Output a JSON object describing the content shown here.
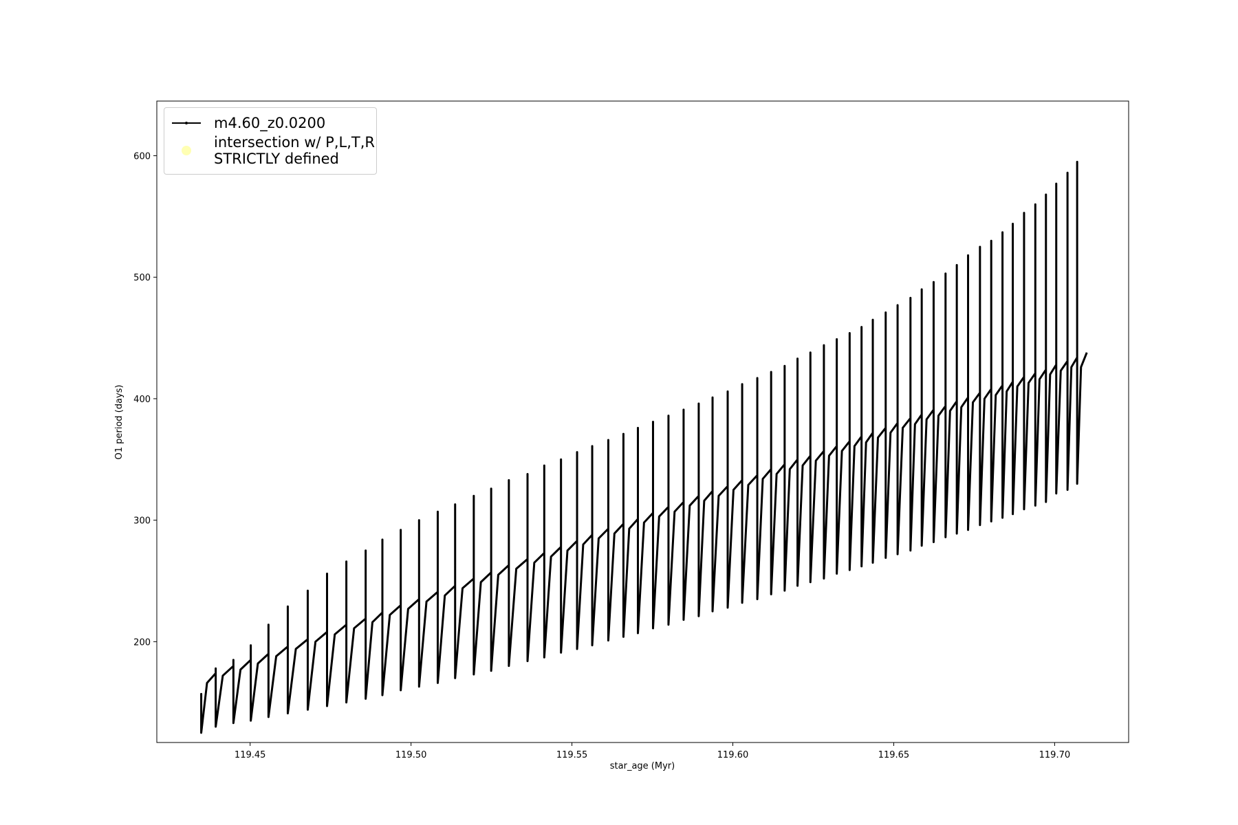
{
  "chart_data": {
    "type": "line",
    "xlabel": "star_age (Myr)",
    "ylabel": "O1 period (days)",
    "xlim": [
      119.421,
      119.723
    ],
    "ylim": [
      117,
      645
    ],
    "xticks": [
      119.45,
      {
        "value": 119.5,
        "label": "119.50"
      },
      119.55,
      {
        "value": 119.6,
        "label": "119.60"
      },
      119.65,
      {
        "value": 119.7,
        "label": "119.70"
      }
    ],
    "yticks": [
      200,
      300,
      400,
      500,
      600
    ],
    "legend": "upper left",
    "series": [
      {
        "name": "m4.60_z0.0200",
        "color": "#000000",
        "x": [
          119.4348,
          119.4348,
          119.4348,
          119.4366,
          119.4393,
          119.4393,
          119.4393,
          119.4415,
          119.4448,
          119.4448,
          119.4448,
          119.447,
          119.4502,
          119.4502,
          119.4502,
          119.4524,
          119.4557,
          119.4557,
          119.4557,
          119.4581,
          119.4617,
          119.4617,
          119.4617,
          119.4642,
          119.4679,
          119.4679,
          119.4679,
          119.4703,
          119.4739,
          119.4739,
          119.4739,
          119.4763,
          119.4799,
          119.4799,
          119.4799,
          119.4823,
          119.4859,
          119.4859,
          119.4859,
          119.488,
          119.4911,
          119.4911,
          119.4911,
          119.4934,
          119.4968,
          119.4968,
          119.4968,
          119.4991,
          119.5025,
          119.5025,
          119.5025,
          119.5048,
          119.5083,
          119.5083,
          119.5083,
          119.5105,
          119.5137,
          119.5137,
          119.5137,
          119.516,
          119.5195,
          119.5195,
          119.5195,
          119.5217,
          119.5249,
          119.5249,
          119.5249,
          119.5271,
          119.5304,
          119.5304,
          119.5304,
          119.5327,
          119.5362,
          119.5362,
          119.5362,
          119.5383,
          119.5414,
          119.5414,
          119.5414,
          119.5435,
          119.5466,
          119.5466,
          119.5466,
          119.5486,
          119.5516,
          119.5516,
          119.5516,
          119.5535,
          119.5563,
          119.5563,
          119.5563,
          119.5583,
          119.5613,
          119.5613,
          119.5613,
          119.5632,
          119.566,
          119.566,
          119.566,
          119.5678,
          119.5705,
          119.5705,
          119.5705,
          119.5724,
          119.5752,
          119.5752,
          119.5752,
          119.5771,
          119.58,
          119.58,
          119.58,
          119.5819,
          119.5847,
          119.5847,
          119.5847,
          119.5866,
          119.5894,
          119.5894,
          119.5894,
          119.5911,
          119.5937,
          119.5937,
          119.5937,
          119.5956,
          119.5984,
          119.5984,
          119.5984,
          119.6002,
          119.6029,
          119.6029,
          119.6029,
          119.6048,
          119.6076,
          119.6076,
          119.6076,
          119.6093,
          119.6119,
          119.6119,
          119.6119,
          119.6136,
          119.6161,
          119.6161,
          119.6161,
          119.6177,
          119.6201,
          119.6201,
          119.6201,
          119.6217,
          119.6241,
          119.6241,
          119.6241,
          119.6258,
          119.6283,
          119.6283,
          119.6283,
          119.6299,
          119.6323,
          119.6323,
          119.6323,
          119.6339,
          119.6363,
          119.6363,
          119.6363,
          119.6378,
          119.64,
          119.64,
          119.64,
          119.6414,
          119.6435,
          119.6435,
          119.6435,
          119.6451,
          119.6475,
          119.6475,
          119.6475,
          119.649,
          119.6512,
          119.6512,
          119.6512,
          119.6528,
          119.6552,
          119.6552,
          119.6552,
          119.6566,
          119.6587,
          119.6587,
          119.6587,
          119.6602,
          119.6624,
          119.6624,
          119.6624,
          119.6639,
          119.6661,
          119.6661,
          119.6661,
          119.6675,
          119.6696,
          119.6696,
          119.6696,
          119.671,
          119.6731,
          119.6731,
          119.6731,
          119.6746,
          119.6768,
          119.6768,
          119.6768,
          119.6782,
          119.6803,
          119.6803,
          119.6803,
          119.6817,
          119.6838,
          119.6838,
          119.6838,
          119.6851,
          119.687,
          119.687,
          119.687,
          119.6884,
          119.6905,
          119.6905,
          119.6905,
          119.6919,
          119.694,
          119.694,
          119.694,
          119.6953,
          119.6973,
          119.6973,
          119.6973,
          119.6986,
          119.7005,
          119.7005,
          119.7005,
          119.7019,
          119.704,
          119.704,
          119.704,
          119.7052,
          119.707,
          119.707,
          119.707,
          119.7082,
          119.71
        ],
        "values": [
          150,
          157,
          125,
          166,
          174,
          178,
          130,
          172,
          180,
          185,
          133,
          177,
          185,
          197,
          135,
          182,
          190,
          214,
          138,
          188,
          196,
          229,
          141,
          194,
          202,
          242,
          144,
          200,
          208,
          256,
          147,
          206,
          214,
          266,
          150,
          211,
          219,
          275,
          153,
          216,
          224,
          284,
          156,
          222,
          230,
          292,
          160,
          227,
          235,
          300,
          163,
          233,
          241,
          307,
          166,
          238,
          246,
          313,
          170,
          244,
          252,
          320,
          173,
          249,
          257,
          326,
          176,
          255,
          263,
          333,
          180,
          260,
          268,
          338,
          184,
          265,
          273,
          345,
          187,
          270,
          278,
          350,
          191,
          275,
          283,
          356,
          194,
          280,
          288,
          361,
          197,
          285,
          293,
          366,
          201,
          289,
          297,
          371,
          204,
          293,
          301,
          376,
          207,
          298,
          306,
          381,
          211,
          303,
          311,
          386,
          214,
          307,
          315,
          391,
          218,
          312,
          320,
          396,
          221,
          316,
          324,
          401,
          225,
          320,
          328,
          406,
          228,
          325,
          333,
          412,
          232,
          329,
          337,
          417,
          235,
          334,
          342,
          422,
          239,
          338,
          346,
          427,
          242,
          342,
          350,
          433,
          246,
          345,
          353,
          438,
          249,
          349,
          357,
          444,
          252,
          353,
          361,
          449,
          256,
          357,
          365,
          454,
          259,
          361,
          369,
          459,
          262,
          364,
          372,
          465,
          265,
          368,
          376,
          471,
          269,
          372,
          380,
          477,
          272,
          376,
          384,
          483,
          275,
          379,
          387,
          490,
          279,
          383,
          391,
          496,
          282,
          386,
          394,
          503,
          286,
          390,
          398,
          510,
          289,
          393,
          401,
          518,
          292,
          397,
          405,
          525,
          296,
          400,
          408,
          530,
          299,
          403,
          411,
          537,
          302,
          406,
          414,
          544,
          305,
          410,
          418,
          553,
          309,
          413,
          421,
          560,
          312,
          416,
          424,
          568,
          315,
          420,
          428,
          577,
          322,
          423,
          431,
          586,
          325,
          426,
          434,
          595,
          330,
          426,
          438
        ]
      },
      {
        "name": "intersection w/ P,L,T,R\nSTRICTLY defined",
        "type": "scatter",
        "color": "#ffffb3",
        "x": [],
        "values": []
      }
    ]
  }
}
